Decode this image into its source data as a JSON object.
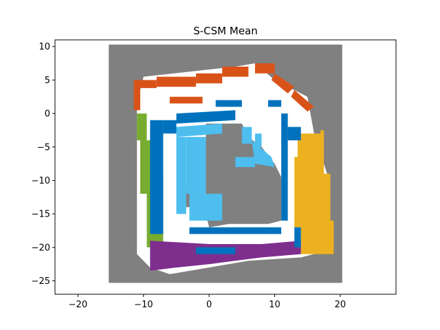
{
  "chart_data": {
    "type": "heatmap",
    "title": "S-CSM Mean",
    "xlabel": "",
    "ylabel": "",
    "xlim": [
      -23.5,
      28.5
    ],
    "ylim": [
      -27,
      11
    ],
    "x_ticks": [
      -20,
      -10,
      0,
      10,
      20
    ],
    "y_ticks": [
      -25,
      -20,
      -15,
      -10,
      -5,
      0,
      5,
      10
    ],
    "grid": false,
    "extent": {
      "x": [
        -15.3,
        20.3
      ],
      "y": [
        -25.3,
        10.3
      ]
    },
    "colors": {
      "unknown": "#808080",
      "free": "#ffffff",
      "dark_blue": "#0072bd",
      "light_blue": "#4dbeee",
      "orange_red": "#d95319",
      "green": "#77ac30",
      "yellow": "#edb120",
      "purple": "#7e2f8e"
    },
    "regions": [
      {
        "class": "free",
        "polygon": [
          [
            -11,
            1.5
          ],
          [
            -11,
            -21
          ],
          [
            -9,
            -23
          ],
          [
            -6,
            -24
          ],
          [
            6,
            -22
          ],
          [
            14,
            -21.5
          ],
          [
            18,
            -20.5
          ],
          [
            18,
            -9
          ],
          [
            16,
            -3
          ],
          [
            15,
            2.5
          ],
          [
            10,
            5
          ],
          [
            7,
            7.5
          ],
          [
            4,
            7
          ],
          [
            -10,
            5.5
          ]
        ]
      },
      {
        "class": "unknown",
        "polygon": [
          [
            -0.5,
            -1.5
          ],
          [
            5,
            -1.5
          ],
          [
            6,
            -3.5
          ],
          [
            8,
            -5
          ],
          [
            10,
            -7.5
          ],
          [
            11,
            -9.5
          ],
          [
            11,
            -16
          ],
          [
            9,
            -16.5
          ],
          [
            3,
            -16.5
          ],
          [
            0,
            -17
          ],
          [
            -0.5,
            -15
          ]
        ]
      },
      {
        "class": "unknown",
        "polygon": [
          [
            -5,
            -11
          ],
          [
            -2,
            -11
          ],
          [
            -2,
            -14
          ],
          [
            -5,
            -14
          ]
        ]
      },
      {
        "class": "unknown",
        "polygon": [
          [
            2,
            -14
          ],
          [
            -0.5,
            -14
          ],
          [
            -0.5,
            -16
          ],
          [
            2,
            -16
          ]
        ]
      },
      {
        "class": "orange_red",
        "polygon": [
          [
            -11.5,
            5
          ],
          [
            -8,
            5
          ],
          [
            -8,
            3.8
          ],
          [
            -11.5,
            3.8
          ]
        ]
      },
      {
        "class": "orange_red",
        "polygon": [
          [
            -11.5,
            3.8
          ],
          [
            -10.5,
            3.8
          ],
          [
            -10.5,
            0.5
          ],
          [
            -11.5,
            0.5
          ]
        ]
      },
      {
        "class": "orange_red",
        "polygon": [
          [
            -8,
            5.5
          ],
          [
            -2,
            5.5
          ],
          [
            -2,
            4
          ],
          [
            -8,
            4
          ]
        ]
      },
      {
        "class": "orange_red",
        "polygon": [
          [
            -2,
            6
          ],
          [
            2,
            6
          ],
          [
            2,
            4.5
          ],
          [
            -2,
            4.5
          ]
        ]
      },
      {
        "class": "orange_red",
        "polygon": [
          [
            2,
            7
          ],
          [
            6,
            7
          ],
          [
            6,
            5.5
          ],
          [
            2,
            5.5
          ]
        ]
      },
      {
        "class": "orange_red",
        "polygon": [
          [
            7,
            7.5
          ],
          [
            10,
            7.5
          ],
          [
            10,
            6
          ],
          [
            7,
            6
          ]
        ]
      },
      {
        "class": "orange_red",
        "polygon": [
          [
            10,
            6
          ],
          [
            13,
            4
          ],
          [
            12,
            3
          ],
          [
            9.5,
            5
          ]
        ]
      },
      {
        "class": "orange_red",
        "polygon": [
          [
            13,
            3.5
          ],
          [
            16,
            1
          ],
          [
            15,
            0.3
          ],
          [
            12.5,
            2.5
          ]
        ]
      },
      {
        "class": "orange_red",
        "polygon": [
          [
            -6,
            2.5
          ],
          [
            -1,
            2.5
          ],
          [
            -1,
            1.5
          ],
          [
            -6,
            1.5
          ]
        ]
      },
      {
        "class": "green",
        "polygon": [
          [
            -11,
            0
          ],
          [
            -9.5,
            0
          ],
          [
            -9.5,
            -4
          ],
          [
            -8.5,
            -4
          ],
          [
            -8.5,
            -9
          ],
          [
            -7,
            -9
          ],
          [
            -7,
            -20
          ],
          [
            -9.5,
            -20
          ],
          [
            -9.5,
            -12
          ],
          [
            -10.5,
            -12
          ],
          [
            -10.5,
            -4
          ],
          [
            -11,
            -4
          ]
        ]
      },
      {
        "class": "yellow",
        "polygon": [
          [
            13.5,
            -3
          ],
          [
            17,
            -3
          ],
          [
            17,
            -2.5
          ],
          [
            17.5,
            -2.5
          ],
          [
            17.5,
            -9
          ],
          [
            18.5,
            -9
          ],
          [
            18.5,
            -16
          ],
          [
            19,
            -16
          ],
          [
            19,
            -21
          ],
          [
            14,
            -21
          ],
          [
            14,
            -17
          ],
          [
            13,
            -17
          ],
          [
            13,
            -6.5
          ],
          [
            13.5,
            -6.5
          ]
        ]
      },
      {
        "class": "purple",
        "polygon": [
          [
            -9,
            -19
          ],
          [
            0,
            -19.5
          ],
          [
            8,
            -19.5
          ],
          [
            14,
            -19
          ],
          [
            14,
            -21
          ],
          [
            8,
            -21.5
          ],
          [
            0,
            -22.5
          ],
          [
            -5,
            -23
          ],
          [
            -9,
            -23.5
          ]
        ]
      },
      {
        "class": "dark_blue",
        "polygon": [
          [
            -9,
            -1
          ],
          [
            -7,
            -1
          ],
          [
            -7,
            -18
          ],
          [
            -9,
            -18
          ]
        ]
      },
      {
        "class": "dark_blue",
        "polygon": [
          [
            -7,
            -1
          ],
          [
            -5,
            -1
          ],
          [
            -5,
            -3
          ],
          [
            -7,
            -3
          ]
        ]
      },
      {
        "class": "dark_blue",
        "polygon": [
          [
            -5,
            0
          ],
          [
            4,
            0.5
          ],
          [
            4,
            -1
          ],
          [
            -5,
            -1.5
          ]
        ]
      },
      {
        "class": "dark_blue",
        "polygon": [
          [
            1,
            2
          ],
          [
            5,
            2
          ],
          [
            5,
            1
          ],
          [
            1,
            1
          ]
        ]
      },
      {
        "class": "dark_blue",
        "polygon": [
          [
            9,
            2
          ],
          [
            11,
            2
          ],
          [
            11,
            1
          ],
          [
            9,
            1
          ]
        ]
      },
      {
        "class": "dark_blue",
        "polygon": [
          [
            11,
            0
          ],
          [
            12,
            0
          ],
          [
            12,
            -16
          ],
          [
            11,
            -16
          ]
        ]
      },
      {
        "class": "dark_blue",
        "polygon": [
          [
            12,
            -2
          ],
          [
            14,
            -2
          ],
          [
            14,
            -4
          ],
          [
            12,
            -4
          ]
        ]
      },
      {
        "class": "dark_blue",
        "polygon": [
          [
            -3,
            -17
          ],
          [
            11,
            -17
          ],
          [
            11,
            -18
          ],
          [
            -3,
            -18
          ]
        ]
      },
      {
        "class": "dark_blue",
        "polygon": [
          [
            -2,
            -20
          ],
          [
            4,
            -20
          ],
          [
            4,
            -21
          ],
          [
            -2,
            -21
          ]
        ]
      },
      {
        "class": "dark_blue",
        "polygon": [
          [
            13,
            -17
          ],
          [
            14,
            -17
          ],
          [
            14,
            -20
          ],
          [
            13,
            -20
          ]
        ]
      },
      {
        "class": "light_blue",
        "polygon": [
          [
            -5,
            -2
          ],
          [
            2,
            -1.5
          ],
          [
            2,
            -3
          ],
          [
            -5,
            -3.5
          ]
        ]
      },
      {
        "class": "light_blue",
        "polygon": [
          [
            -5,
            -3.5
          ],
          [
            -3.5,
            -3.5
          ],
          [
            -3.5,
            -15
          ],
          [
            -5,
            -15
          ]
        ]
      },
      {
        "class": "light_blue",
        "polygon": [
          [
            -3.5,
            -3.5
          ],
          [
            -0.5,
            -3.5
          ],
          [
            -0.5,
            -12
          ],
          [
            -3.5,
            -12
          ]
        ]
      },
      {
        "class": "light_blue",
        "polygon": [
          [
            5,
            -2
          ],
          [
            6.5,
            -2
          ],
          [
            6.5,
            -4.5
          ],
          [
            5,
            -4.5
          ]
        ]
      },
      {
        "class": "light_blue",
        "polygon": [
          [
            6.5,
            -4
          ],
          [
            9.5,
            -6.5
          ],
          [
            10,
            -8
          ],
          [
            7,
            -7.5
          ]
        ]
      },
      {
        "class": "light_blue",
        "polygon": [
          [
            4,
            -6.5
          ],
          [
            7,
            -6.5
          ],
          [
            7,
            -8
          ],
          [
            4,
            -8
          ]
        ]
      },
      {
        "class": "light_blue",
        "polygon": [
          [
            -3,
            -12
          ],
          [
            2,
            -12
          ],
          [
            2,
            -16
          ],
          [
            -3,
            -16
          ]
        ]
      },
      {
        "class": "light_blue",
        "polygon": [
          [
            7,
            -3
          ],
          [
            8,
            -3
          ],
          [
            8,
            -5
          ],
          [
            7,
            -5
          ]
        ]
      }
    ]
  }
}
